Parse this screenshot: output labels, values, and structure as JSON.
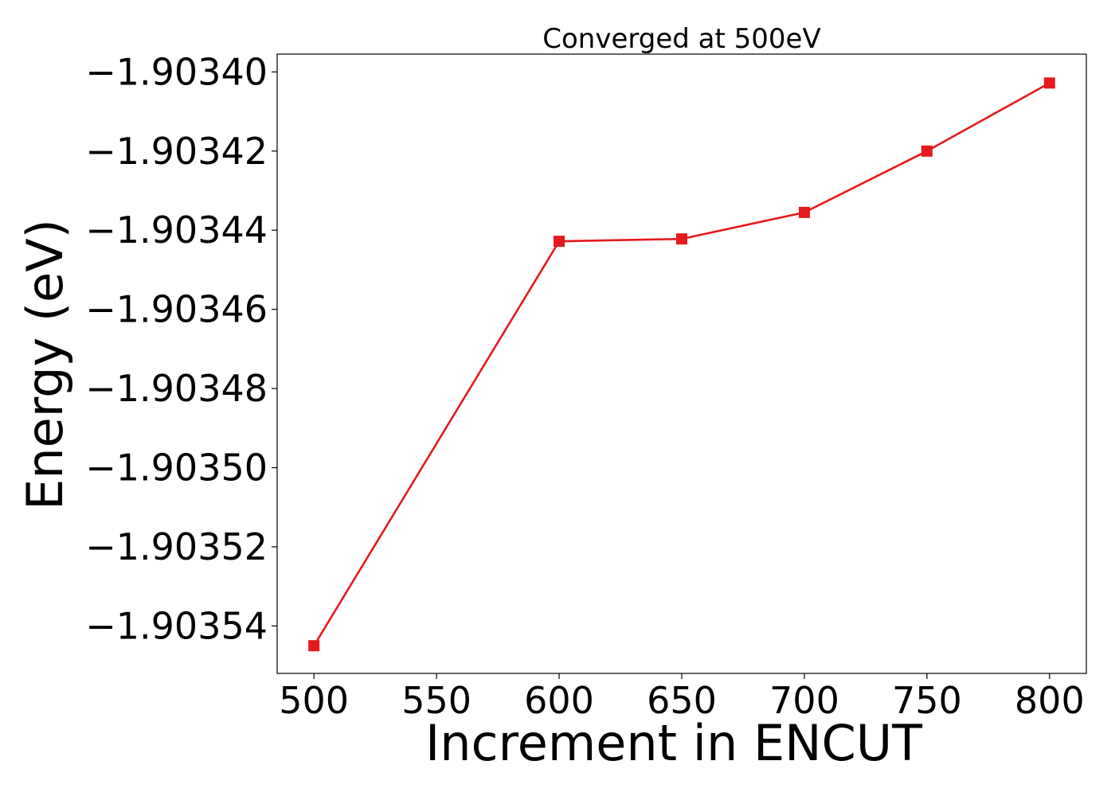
{
  "chart_data": {
    "type": "line",
    "title": "Converged at 500eV",
    "xlabel": "Increment in ENCUT",
    "ylabel": "Energy (eV)",
    "x": [
      500,
      600,
      650,
      700,
      750,
      800
    ],
    "series": [
      {
        "values": [
          -1.903545,
          -1.9034428,
          -1.9034422,
          -1.9034355,
          -1.90342,
          -1.9034028
        ],
        "color": "#e41a1c",
        "marker": "square"
      }
    ],
    "xlim": [
      485,
      815
    ],
    "ylim": [
      -1.903552,
      -1.9033955
    ],
    "xticks": [
      500,
      550,
      600,
      650,
      700,
      750,
      800
    ],
    "xtick_labels": [
      "500",
      "550",
      "600",
      "650",
      "700",
      "750",
      "800"
    ],
    "yticks": [
      -1.90354,
      -1.90352,
      -1.9035,
      -1.90348,
      -1.90346,
      -1.90344,
      -1.90342,
      -1.9034
    ],
    "ytick_labels": [
      "−1.90354",
      "−1.90352",
      "−1.90350",
      "−1.90348",
      "−1.90346",
      "−1.90344",
      "−1.90342",
      "−1.90340"
    ],
    "grid": false,
    "legend": "none"
  }
}
